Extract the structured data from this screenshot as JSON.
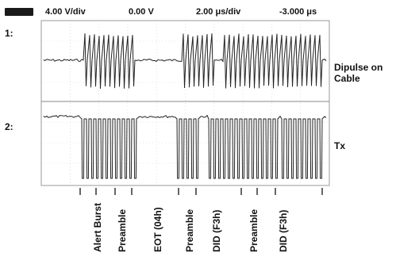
{
  "header": {
    "volts_per_div": "4.00 V/div",
    "offset": "0.00 V",
    "time_per_div": "2.00 μs/div",
    "delay": "-3.000 μs"
  },
  "channels": [
    {
      "id": "1:",
      "label_line1": "Dipulse on",
      "label_line2": "Cable"
    },
    {
      "id": "2:",
      "label_line1": "Tx"
    }
  ],
  "segments": [
    "Alert Burst",
    "Preamble",
    "EOT (04h)",
    "Preamble",
    "DID (F3h)",
    "Preamble",
    "DID (F3h)"
  ]
}
